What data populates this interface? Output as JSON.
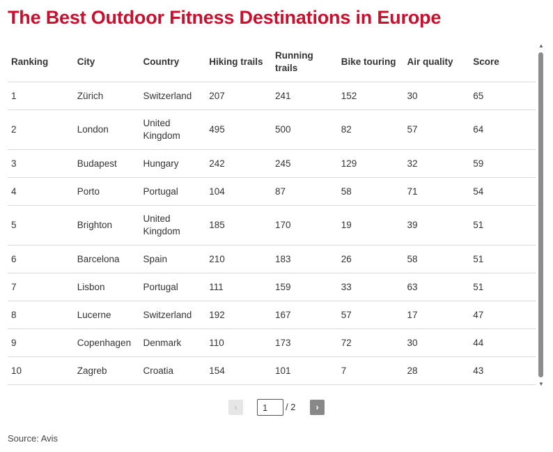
{
  "title": "The Best Outdoor Fitness Destinations in Europe",
  "table": {
    "headers": [
      "Ranking",
      "City",
      "Country",
      "Hiking trails",
      "Running trails",
      "Bike touring",
      "Air quality",
      "Score"
    ],
    "rows": [
      [
        "1",
        "Zürich",
        "Switzerland",
        "207",
        "241",
        "152",
        "30",
        "65"
      ],
      [
        "2",
        "London",
        "United Kingdom",
        "495",
        "500",
        "82",
        "57",
        "64"
      ],
      [
        "3",
        "Budapest",
        "Hungary",
        "242",
        "245",
        "129",
        "32",
        "59"
      ],
      [
        "4",
        "Porto",
        "Portugal",
        "104",
        "87",
        "58",
        "71",
        "54"
      ],
      [
        "5",
        "Brighton",
        "United Kingdom",
        "185",
        "170",
        "19",
        "39",
        "51"
      ],
      [
        "6",
        "Barcelona",
        "Spain",
        "210",
        "183",
        "26",
        "58",
        "51"
      ],
      [
        "7",
        "Lisbon",
        "Portugal",
        "111",
        "159",
        "33",
        "63",
        "51"
      ],
      [
        "8",
        "Lucerne",
        "Switzerland",
        "192",
        "167",
        "57",
        "17",
        "47"
      ],
      [
        "9",
        "Copenhagen",
        "Denmark",
        "110",
        "173",
        "72",
        "30",
        "44"
      ],
      [
        "10",
        "Zagreb",
        "Croatia",
        "154",
        "101",
        "7",
        "28",
        "43"
      ]
    ]
  },
  "pagination": {
    "prev_label": "‹",
    "next_label": "›",
    "current_page": "1",
    "total_label": "/ 2"
  },
  "icons": {
    "scroll_up": "scroll-up-arrow-icon",
    "scroll_down": "scroll-down-arrow-icon"
  },
  "source": "Source: Avis",
  "colors": {
    "title": "#c8102e",
    "row_divider": "#d9d9d9",
    "scrollbar": "#8c8c8c"
  }
}
